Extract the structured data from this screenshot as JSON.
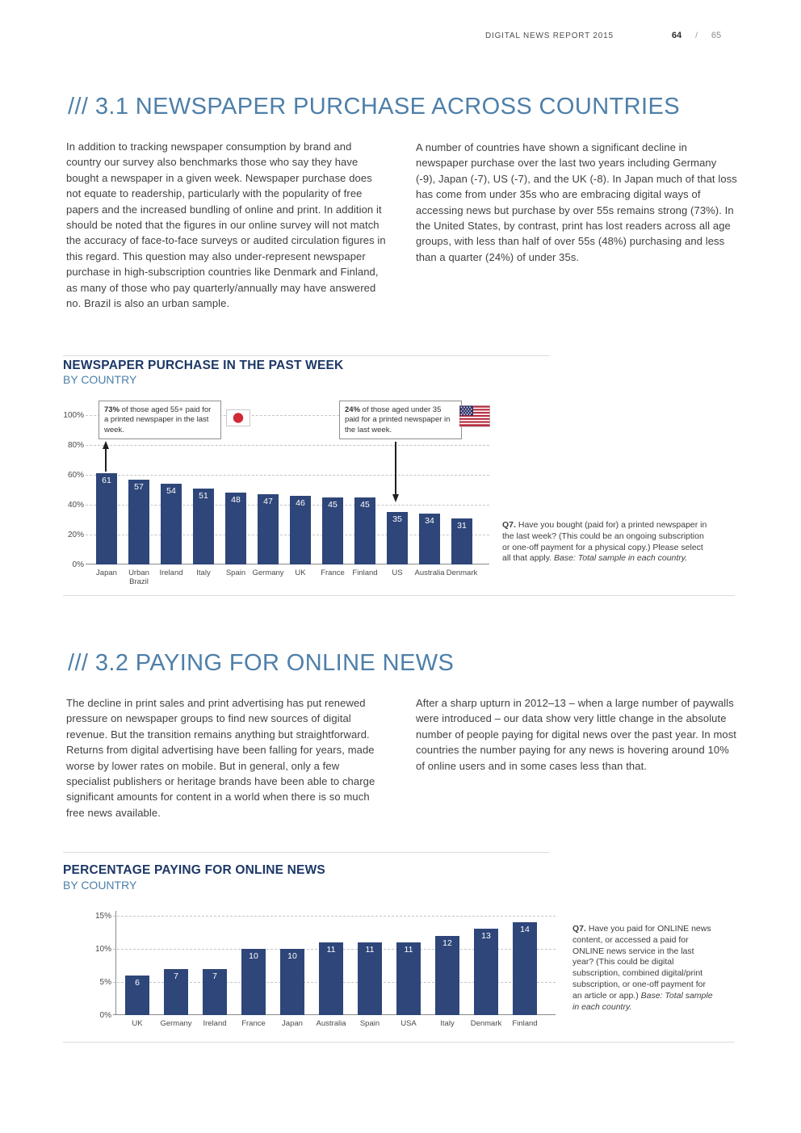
{
  "header": {
    "report_title": "DIGITAL NEWS REPORT 2015",
    "page_left": "64",
    "separator": "/",
    "page_right": "65"
  },
  "section_31": {
    "title": "/// 3.1 NEWSPAPER PURCHASE ACROSS COUNTRIES",
    "left_text": "In addition to tracking newspaper consumption by brand and country our survey also benchmarks those who say they have bought a newspaper in a given week. Newspaper purchase does not equate to readership, particularly with the popularity of free papers and the increased bundling of online and print. In addition it should be noted that the figures in our online survey will not match the accuracy of face-to-face surveys or audited circulation figures in this regard. This question may also under-represent newspaper purchase in high-subscription countries like Denmark and Finland, as many of those who pay quarterly/annually may have answered no. Brazil is also an urban sample.",
    "right_text": "A number of countries have shown a significant decline in newspaper purchase over the last two years including Germany (-9), Japan (-7), US (-7), and the UK (-8). In Japan much of that loss has come from under 35s who are embracing digital ways of accessing news but purchase by over 55s remains strong (73%). In the United States, by contrast, print has lost readers across all age groups, with less than half of over 55s (48%) purchasing and less than a quarter (24%) of under 35s."
  },
  "section_32": {
    "title": "/// 3.2 PAYING FOR ONLINE NEWS",
    "left_text": "The decline in print sales and print advertising has put renewed pressure on newspaper groups to find new sources of digital revenue. But the transition remains anything but straightforward. Returns from digital advertising have been falling for years, made worse by lower rates on mobile. But in general, only a few specialist publishers or heritage brands have been able to charge significant amounts for content in a world when there is so much free news available.",
    "right_text": "After a sharp upturn in 2012–13 – when a large number of paywalls were introduced – our data show very little change in the absolute number of people paying for digital news over the past year. In most countries the number paying for any news is hovering around 10% of online users and in some cases less than that."
  },
  "chart_data": [
    {
      "type": "bar",
      "title": "NEWSPAPER PURCHASE IN THE PAST WEEK",
      "subtitle": "BY COUNTRY",
      "categories": [
        "Japan",
        "Urban Brazil",
        "Ireland",
        "Italy",
        "Spain",
        "Germany",
        "UK",
        "France",
        "Finland",
        "US",
        "Australia",
        "Denmark"
      ],
      "values": [
        61,
        57,
        54,
        51,
        48,
        47,
        46,
        45,
        45,
        35,
        34,
        31
      ],
      "unit": "%",
      "ylim": [
        0,
        100
      ],
      "grid": "dashed-horizontal",
      "bar_color": "#2e4679",
      "y_ticks": [
        {
          "value": 100,
          "label": "100%"
        },
        {
          "value": 80,
          "label": "80%"
        },
        {
          "value": 60,
          "label": "60%"
        },
        {
          "value": 40,
          "label": "40%"
        },
        {
          "value": 20,
          "label": "20%"
        },
        {
          "value": 0,
          "label": "0%"
        }
      ],
      "annotations": [
        {
          "bold": "73%",
          "text": " of those aged 55+ paid for a printed newspaper in the last week.",
          "flag": "japan-flag"
        },
        {
          "bold": "24%",
          "text": " of those aged under 35 paid for a printed newspaper in the last week.",
          "flag": "usa-flag"
        }
      ],
      "note": {
        "bold": "Q7.",
        "text": " Have you bought (paid for) a printed newspaper in the last week? (This could be an ongoing subscription or one-off payment for a physical copy.) Please select all that apply. ",
        "italic": "Base: Total sample in each country."
      }
    },
    {
      "type": "bar",
      "title": "PERCENTAGE PAYING FOR ONLINE NEWS",
      "subtitle": "BY COUNTRY",
      "categories": [
        "UK",
        "Germany",
        "Ireland",
        "France",
        "Japan",
        "Australia",
        "Spain",
        "USA",
        "Italy",
        "Denmark",
        "Finland"
      ],
      "values": [
        6,
        7,
        7,
        10,
        10,
        11,
        11,
        11,
        12,
        13,
        14
      ],
      "unit": "%",
      "ylim": [
        0,
        15
      ],
      "grid": "dashed-horizontal",
      "bar_color": "#2e4679",
      "y_ticks": [
        {
          "value": 15,
          "label": "15%"
        },
        {
          "value": 10,
          "label": "10%"
        },
        {
          "value": 5,
          "label": "5%"
        },
        {
          "value": 0,
          "label": "0%"
        }
      ],
      "note": {
        "bold": "Q7.",
        "text": " Have you paid for ONLINE news content, or accessed a paid for ONLINE news service in the last year? (This could be digital subscription, combined digital/print subscription, or one-off payment for an article or app.) ",
        "italic": "Base: Total sample in each country."
      }
    }
  ]
}
